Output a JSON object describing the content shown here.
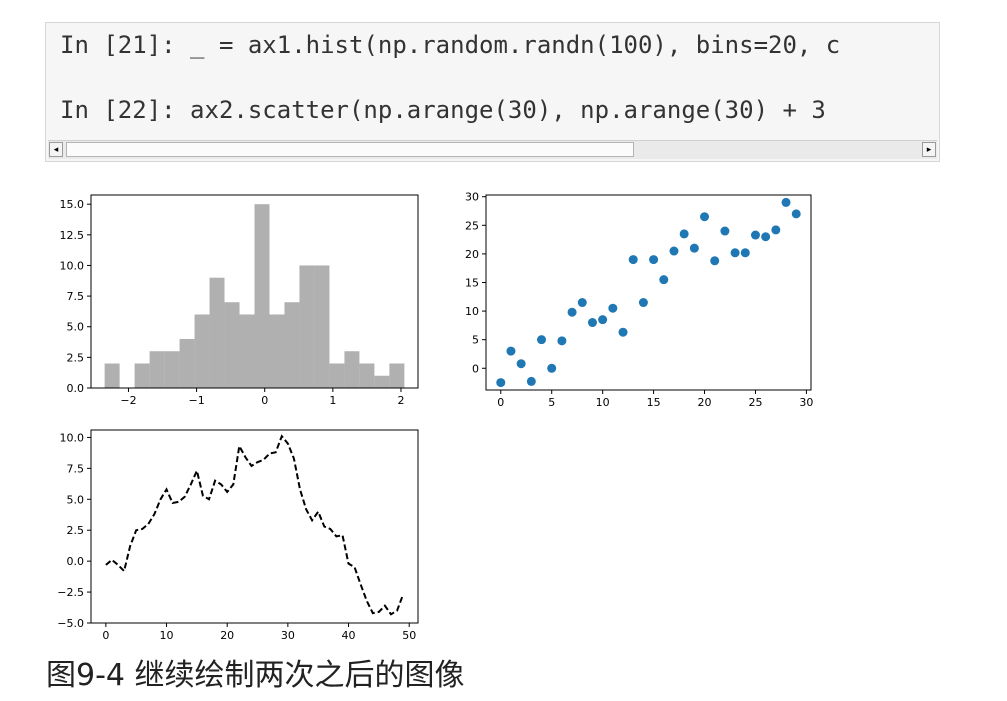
{
  "code": {
    "lines": [
      "In [21]: _ = ax1.hist(np.random.randn(100), bins=20, c",
      "In [22]: ax2.scatter(np.arange(30), np.arange(30) + 3"
    ]
  },
  "scrollbar": {
    "left_arrow": "◂",
    "right_arrow": "▸"
  },
  "caption": "图9-4 继续绘制两次之后的图像",
  "colors": {
    "hist": "#b0b0b0",
    "scatter": "#1f77b4",
    "line": "#000000"
  },
  "chart_data": [
    {
      "type": "bar",
      "subtype": "histogram",
      "bins": [
        {
          "x0": -2.35,
          "x1": -2.13,
          "count": 2
        },
        {
          "x0": -2.13,
          "x1": -1.91,
          "count": 0
        },
        {
          "x0": -1.91,
          "x1": -1.69,
          "count": 2
        },
        {
          "x0": -1.69,
          "x1": -1.47,
          "count": 3
        },
        {
          "x0": -1.47,
          "x1": -1.25,
          "count": 3
        },
        {
          "x0": -1.25,
          "x1": -1.03,
          "count": 4
        },
        {
          "x0": -1.03,
          "x1": -0.81,
          "count": 6
        },
        {
          "x0": -0.81,
          "x1": -0.59,
          "count": 9
        },
        {
          "x0": -0.59,
          "x1": -0.37,
          "count": 7
        },
        {
          "x0": -0.37,
          "x1": -0.15,
          "count": 6
        },
        {
          "x0": -0.15,
          "x1": 0.07,
          "count": 15
        },
        {
          "x0": 0.07,
          "x1": 0.29,
          "count": 6
        },
        {
          "x0": 0.29,
          "x1": 0.51,
          "count": 7
        },
        {
          "x0": 0.51,
          "x1": 0.73,
          "count": 10
        },
        {
          "x0": 0.73,
          "x1": 0.95,
          "count": 10
        },
        {
          "x0": 0.95,
          "x1": 1.17,
          "count": 2
        },
        {
          "x0": 1.17,
          "x1": 1.39,
          "count": 3
        },
        {
          "x0": 1.39,
          "x1": 1.61,
          "count": 2
        },
        {
          "x0": 1.61,
          "x1": 1.83,
          "count": 1
        },
        {
          "x0": 1.83,
          "x1": 2.05,
          "count": 2
        }
      ],
      "xlim": [
        -2.55,
        2.25
      ],
      "ylim": [
        0,
        15.75
      ],
      "xticks": [
        -2,
        -1,
        0,
        1,
        2
      ],
      "xtick_labels": [
        "−2",
        "−1",
        "0",
        "1",
        "2"
      ],
      "yticks": [
        0,
        2.5,
        5,
        7.5,
        10,
        12.5,
        15
      ],
      "ytick_labels": [
        "0.0",
        "2.5",
        "5.0",
        "7.5",
        "10.0",
        "12.5",
        "15.0"
      ],
      "title": "",
      "xlabel": "",
      "ylabel": ""
    },
    {
      "type": "scatter",
      "x": [
        0,
        1,
        2,
        3,
        4,
        5,
        6,
        7,
        8,
        9,
        10,
        11,
        12,
        13,
        14,
        15,
        16,
        17,
        18,
        19,
        20,
        21,
        22,
        23,
        24,
        25,
        26,
        27,
        28,
        29
      ],
      "y": [
        -2.5,
        3.0,
        0.8,
        -2.3,
        5.0,
        0.0,
        4.8,
        9.8,
        11.5,
        8.0,
        8.5,
        10.5,
        6.3,
        19.0,
        11.5,
        19.0,
        15.5,
        20.5,
        23.5,
        21.0,
        26.5,
        18.8,
        24.0,
        20.2,
        20.2,
        23.3,
        23.0,
        24.2,
        29.0,
        27.0
      ],
      "xlim": [
        -1.45,
        30.45
      ],
      "ylim": [
        -3.8,
        30.3
      ],
      "xticks": [
        0,
        5,
        10,
        15,
        20,
        25,
        30
      ],
      "xtick_labels": [
        "0",
        "5",
        "10",
        "15",
        "20",
        "25",
        "30"
      ],
      "yticks": [
        0,
        5,
        10,
        15,
        20,
        25,
        30
      ],
      "ytick_labels": [
        "0",
        "5",
        "10",
        "15",
        "20",
        "25",
        "30"
      ],
      "title": "",
      "xlabel": "",
      "ylabel": ""
    },
    {
      "type": "line",
      "style": "dashed",
      "x": [
        0,
        1,
        2,
        3,
        4,
        5,
        6,
        7,
        8,
        9,
        10,
        11,
        12,
        13,
        14,
        15,
        16,
        17,
        18,
        19,
        20,
        21,
        22,
        23,
        24,
        25,
        26,
        27,
        28,
        29,
        30,
        31,
        32,
        33,
        34,
        35,
        36,
        37,
        38,
        39,
        40,
        41,
        42,
        43,
        44,
        45,
        46,
        47,
        48,
        49
      ],
      "y": [
        -0.3,
        0.1,
        -0.3,
        -0.8,
        1.2,
        2.5,
        2.6,
        3.0,
        3.8,
        5.0,
        5.8,
        4.7,
        4.8,
        5.2,
        6.2,
        7.3,
        5.3,
        5.0,
        6.5,
        6.2,
        5.6,
        6.2,
        9.3,
        8.4,
        7.7,
        8.0,
        8.2,
        8.7,
        8.8,
        10.1,
        9.5,
        8.3,
        5.8,
        4.2,
        3.3,
        4.0,
        2.8,
        2.6,
        2.0,
        2.1,
        -0.2,
        -0.5,
        -1.9,
        -3.2,
        -4.2,
        -4.1,
        -3.6,
        -4.3,
        -4.0,
        -2.7
      ],
      "xlim": [
        -2.45,
        51.45
      ],
      "ylim": [
        -5.0,
        10.6
      ],
      "xticks": [
        0,
        10,
        20,
        30,
        40,
        50
      ],
      "xtick_labels": [
        "0",
        "10",
        "20",
        "30",
        "40",
        "50"
      ],
      "yticks": [
        -5,
        -2.5,
        0,
        2.5,
        5,
        7.5,
        10
      ],
      "ytick_labels": [
        "−5.0",
        "−2.5",
        "0.0",
        "2.5",
        "5.0",
        "7.5",
        "10.0"
      ],
      "title": "",
      "xlabel": "",
      "ylabel": ""
    }
  ]
}
